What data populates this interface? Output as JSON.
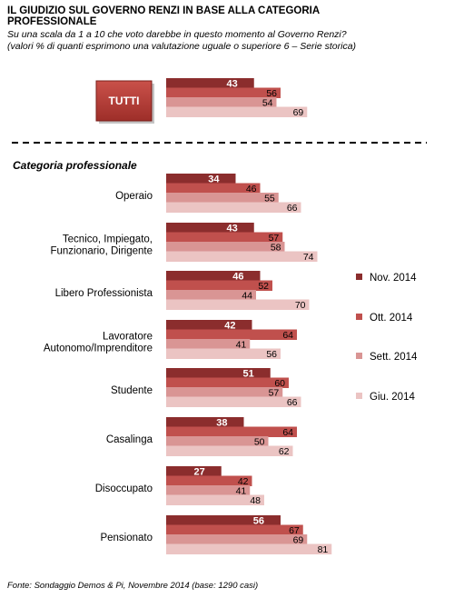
{
  "title": "IL GIUDIZIO SUL GOVERNO RENZI IN BASE ALLA CATEGORIA PROFESSIONALE",
  "subtitle_lines": [
    "Su una scala da 1 a 10 che voto darebbe in questo momento al Governo Renzi?",
    "(valori % di quanti esprimono una valutazione uguale o superiore 6 – Serie storica)"
  ],
  "total_label": "TUTTI",
  "section_label": "Categoria professionale",
  "source": "Fonte: Sondaggio Demos & Pi, Novembre 2014 (base: 1290 casi)",
  "colors": {
    "nov": "#8B2D2D",
    "ott": "#C0504D",
    "sett": "#D99594",
    "giu": "#EBC4C3",
    "tutti_box": "#B83A33"
  },
  "chart_data": {
    "type": "bar",
    "orientation": "horizontal",
    "series": [
      {
        "name": "Nov. 2014",
        "values": [
          43,
          34,
          43,
          46,
          42,
          51,
          38,
          27,
          56
        ]
      },
      {
        "name": "Ott. 2014",
        "values": [
          56,
          46,
          57,
          52,
          64,
          60,
          64,
          42,
          67
        ]
      },
      {
        "name": "Sett. 2014",
        "values": [
          54,
          55,
          58,
          44,
          41,
          57,
          50,
          41,
          69
        ]
      },
      {
        "name": "Giu. 2014",
        "values": [
          69,
          66,
          74,
          70,
          56,
          66,
          62,
          48,
          81
        ]
      }
    ],
    "categories": [
      [
        "TUTTI"
      ],
      [
        "Operaio"
      ],
      [
        "Tecnico, Impiegato,",
        "Funzionario, Dirigente"
      ],
      [
        "Libero Professionista"
      ],
      [
        "Lavoratore",
        "Autonomo/Imprenditore"
      ],
      [
        "Studente"
      ],
      [
        "Casalinga"
      ],
      [
        "Disoccupato"
      ],
      [
        "Pensionato"
      ]
    ],
    "legend_position": "right",
    "grid": false
  }
}
